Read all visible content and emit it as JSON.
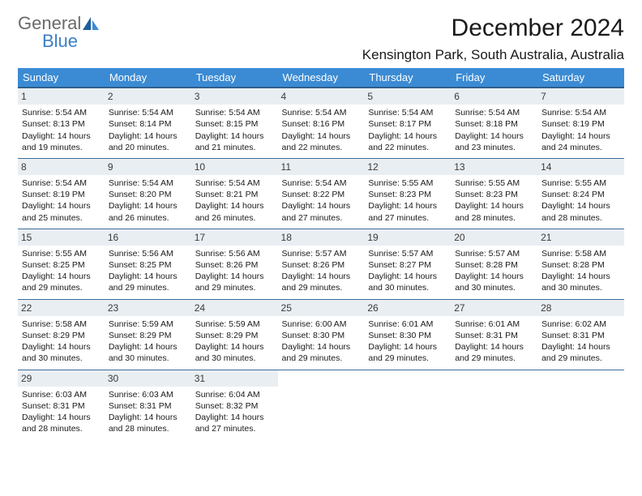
{
  "logo": {
    "line1": "General",
    "line2": "Blue"
  },
  "month_title": "December 2024",
  "location": "Kensington Park, South Australia, Australia",
  "day_headers": [
    "Sunday",
    "Monday",
    "Tuesday",
    "Wednesday",
    "Thursday",
    "Friday",
    "Saturday"
  ],
  "colors": {
    "header_bg": "#3b8bd4",
    "header_border": "#2f5f8f",
    "row_border": "#3b6d9a",
    "daynum_bg": "#e9eef2",
    "logo_gray": "#6a6a6a",
    "logo_blue": "#3b7fc4"
  },
  "weeks": [
    [
      {
        "n": "1",
        "sr": "5:54 AM",
        "ss": "8:13 PM",
        "dl": "14 hours and 19 minutes."
      },
      {
        "n": "2",
        "sr": "5:54 AM",
        "ss": "8:14 PM",
        "dl": "14 hours and 20 minutes."
      },
      {
        "n": "3",
        "sr": "5:54 AM",
        "ss": "8:15 PM",
        "dl": "14 hours and 21 minutes."
      },
      {
        "n": "4",
        "sr": "5:54 AM",
        "ss": "8:16 PM",
        "dl": "14 hours and 22 minutes."
      },
      {
        "n": "5",
        "sr": "5:54 AM",
        "ss": "8:17 PM",
        "dl": "14 hours and 22 minutes."
      },
      {
        "n": "6",
        "sr": "5:54 AM",
        "ss": "8:18 PM",
        "dl": "14 hours and 23 minutes."
      },
      {
        "n": "7",
        "sr": "5:54 AM",
        "ss": "8:19 PM",
        "dl": "14 hours and 24 minutes."
      }
    ],
    [
      {
        "n": "8",
        "sr": "5:54 AM",
        "ss": "8:19 PM",
        "dl": "14 hours and 25 minutes."
      },
      {
        "n": "9",
        "sr": "5:54 AM",
        "ss": "8:20 PM",
        "dl": "14 hours and 26 minutes."
      },
      {
        "n": "10",
        "sr": "5:54 AM",
        "ss": "8:21 PM",
        "dl": "14 hours and 26 minutes."
      },
      {
        "n": "11",
        "sr": "5:54 AM",
        "ss": "8:22 PM",
        "dl": "14 hours and 27 minutes."
      },
      {
        "n": "12",
        "sr": "5:55 AM",
        "ss": "8:23 PM",
        "dl": "14 hours and 27 minutes."
      },
      {
        "n": "13",
        "sr": "5:55 AM",
        "ss": "8:23 PM",
        "dl": "14 hours and 28 minutes."
      },
      {
        "n": "14",
        "sr": "5:55 AM",
        "ss": "8:24 PM",
        "dl": "14 hours and 28 minutes."
      }
    ],
    [
      {
        "n": "15",
        "sr": "5:55 AM",
        "ss": "8:25 PM",
        "dl": "14 hours and 29 minutes."
      },
      {
        "n": "16",
        "sr": "5:56 AM",
        "ss": "8:25 PM",
        "dl": "14 hours and 29 minutes."
      },
      {
        "n": "17",
        "sr": "5:56 AM",
        "ss": "8:26 PM",
        "dl": "14 hours and 29 minutes."
      },
      {
        "n": "18",
        "sr": "5:57 AM",
        "ss": "8:26 PM",
        "dl": "14 hours and 29 minutes."
      },
      {
        "n": "19",
        "sr": "5:57 AM",
        "ss": "8:27 PM",
        "dl": "14 hours and 30 minutes."
      },
      {
        "n": "20",
        "sr": "5:57 AM",
        "ss": "8:28 PM",
        "dl": "14 hours and 30 minutes."
      },
      {
        "n": "21",
        "sr": "5:58 AM",
        "ss": "8:28 PM",
        "dl": "14 hours and 30 minutes."
      }
    ],
    [
      {
        "n": "22",
        "sr": "5:58 AM",
        "ss": "8:29 PM",
        "dl": "14 hours and 30 minutes."
      },
      {
        "n": "23",
        "sr": "5:59 AM",
        "ss": "8:29 PM",
        "dl": "14 hours and 30 minutes."
      },
      {
        "n": "24",
        "sr": "5:59 AM",
        "ss": "8:29 PM",
        "dl": "14 hours and 30 minutes."
      },
      {
        "n": "25",
        "sr": "6:00 AM",
        "ss": "8:30 PM",
        "dl": "14 hours and 29 minutes."
      },
      {
        "n": "26",
        "sr": "6:01 AM",
        "ss": "8:30 PM",
        "dl": "14 hours and 29 minutes."
      },
      {
        "n": "27",
        "sr": "6:01 AM",
        "ss": "8:31 PM",
        "dl": "14 hours and 29 minutes."
      },
      {
        "n": "28",
        "sr": "6:02 AM",
        "ss": "8:31 PM",
        "dl": "14 hours and 29 minutes."
      }
    ],
    [
      {
        "n": "29",
        "sr": "6:03 AM",
        "ss": "8:31 PM",
        "dl": "14 hours and 28 minutes."
      },
      {
        "n": "30",
        "sr": "6:03 AM",
        "ss": "8:31 PM",
        "dl": "14 hours and 28 minutes."
      },
      {
        "n": "31",
        "sr": "6:04 AM",
        "ss": "8:32 PM",
        "dl": "14 hours and 27 minutes."
      },
      null,
      null,
      null,
      null
    ]
  ],
  "labels": {
    "sunrise": "Sunrise:",
    "sunset": "Sunset:",
    "daylight": "Daylight:"
  }
}
